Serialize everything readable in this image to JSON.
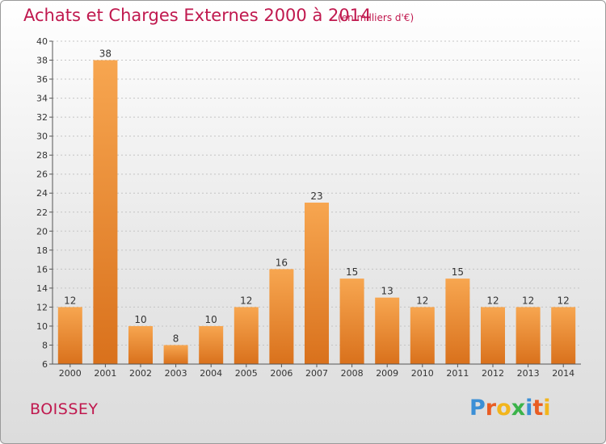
{
  "title": "Achats et Charges Externes 2000 à 2014",
  "unit": "(en milliers d'€)",
  "place": "BOISSEY",
  "logo": {
    "letters": [
      "P",
      "r",
      "o",
      "x",
      "i",
      "t",
      "i"
    ],
    "colors": [
      "#3b8fd6",
      "#e95d23",
      "#f2b51c",
      "#3bb34a",
      "#3b8fd6",
      "#e95d23",
      "#f2b51c"
    ]
  },
  "colors": {
    "bar_top": "#f7a650",
    "bar_bottom": "#d9711c",
    "accent": "#c0184e"
  },
  "chart_data": {
    "type": "bar",
    "title": "Achats et Charges Externes 2000 à 2014",
    "subtitle": "(en milliers d'€)",
    "categories": [
      "2000",
      "2001",
      "2002",
      "2003",
      "2004",
      "2005",
      "2006",
      "2007",
      "2008",
      "2009",
      "2010",
      "2011",
      "2012",
      "2013",
      "2014"
    ],
    "values": [
      12,
      38,
      10,
      8,
      10,
      12,
      16,
      23,
      15,
      13,
      12,
      15,
      12,
      12,
      12
    ],
    "ylim": [
      6,
      40
    ],
    "yticks": [
      6,
      8,
      10,
      12,
      14,
      16,
      18,
      20,
      22,
      24,
      26,
      28,
      30,
      32,
      34,
      36,
      38,
      40
    ],
    "grid": true,
    "data_labels": true
  }
}
